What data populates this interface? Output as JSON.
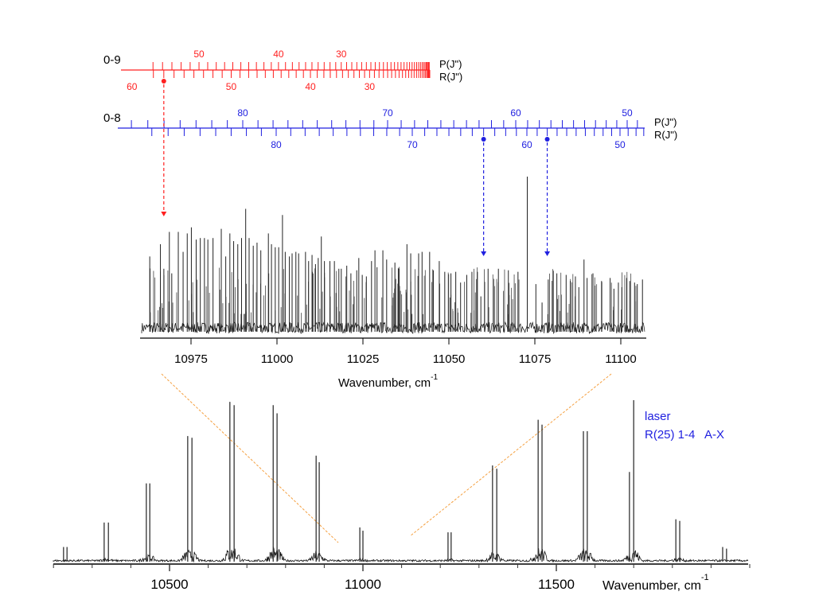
{
  "assignment_scales": [
    {
      "label": "0-9",
      "color": "#ff2020",
      "p_label": "P(J\")",
      "r_label": "R(J\")",
      "p_range": [
        0,
        55
      ],
      "r_range": [
        6,
        58
      ],
      "p_tick_labels": [
        50,
        40,
        30
      ],
      "r_tick_labels": [
        60,
        50,
        40,
        30
      ],
      "marked_R": [
        57
      ]
    },
    {
      "label": "0-8",
      "color": "#2020e0",
      "p_label": "P(J\")",
      "r_label": "R(J\")",
      "p_range": [
        49,
        87
      ],
      "r_range": [
        47,
        88
      ],
      "p_tick_labels": [
        80,
        70,
        60,
        50
      ],
      "r_tick_labels": [
        80,
        70,
        60,
        50
      ],
      "marked_R": [
        64,
        58
      ]
    }
  ],
  "zoom_line_color": "#f5a040",
  "chart_data": [
    {
      "name": "inset",
      "type": "line",
      "title": "",
      "xlabel": "Wavenumber, cm",
      "xlabel_sup": "-1",
      "ylabel": "",
      "xlim": [
        10961,
        11107
      ],
      "ylim": [
        0,
        1
      ],
      "xticks": [
        10975,
        11000,
        11025,
        11050,
        11075,
        11100
      ],
      "grid": false,
      "lines": [
        [
          10963.0,
          0.48
        ],
        [
          10966.1,
          0.56
        ],
        [
          10967.1,
          0.4
        ],
        [
          10968.7,
          0.64
        ],
        [
          10969.4,
          0.37
        ],
        [
          10971.3,
          0.64
        ],
        [
          10972.7,
          0.51
        ],
        [
          10973.9,
          0.63
        ],
        [
          10975.1,
          0.67
        ],
        [
          10976.5,
          0.59
        ],
        [
          10977.7,
          0.6
        ],
        [
          10978.9,
          0.6
        ],
        [
          10979.9,
          0.59
        ],
        [
          10981.4,
          0.6
        ],
        [
          10983.8,
          0.66
        ],
        [
          10985.1,
          0.48
        ],
        [
          10986.3,
          0.63
        ],
        [
          10987.4,
          0.58
        ],
        [
          10988.6,
          0.56
        ],
        [
          10989.7,
          0.6
        ],
        [
          10990.9,
          0.79
        ],
        [
          10991.9,
          0.6
        ],
        [
          10993.1,
          0.55
        ],
        [
          10994.2,
          0.57
        ],
        [
          10995.3,
          0.52
        ],
        [
          10997.5,
          0.63
        ],
        [
          10998.4,
          0.56
        ],
        [
          10999.5,
          0.54
        ],
        [
          11000.5,
          0.54
        ],
        [
          11001.6,
          0.75
        ],
        [
          11002.4,
          0.51
        ],
        [
          11003.6,
          0.48
        ],
        [
          11004.4,
          0.5
        ],
        [
          11005.5,
          0.51
        ],
        [
          11006.3,
          0.5
        ],
        [
          11008.3,
          0.51
        ],
        [
          11009.2,
          0.45
        ],
        [
          11010.2,
          0.49
        ],
        [
          11011.2,
          0.43
        ],
        [
          11012.0,
          0.47
        ],
        [
          11012.9,
          0.61
        ],
        [
          11013.8,
          0.45
        ],
        [
          11015.4,
          0.45
        ],
        [
          11016.7,
          0.45
        ],
        [
          11018.0,
          0.4
        ],
        [
          11018.7,
          0.4
        ],
        [
          11020.3,
          0.42
        ],
        [
          11021.5,
          0.37
        ],
        [
          11023.2,
          0.39
        ],
        [
          11023.8,
          0.47
        ],
        [
          11024.8,
          0.36
        ],
        [
          11026.0,
          0.35
        ],
        [
          11027.5,
          0.45
        ],
        [
          11028.5,
          0.52
        ],
        [
          11029.1,
          0.41
        ],
        [
          11030.8,
          0.52
        ],
        [
          11031.9,
          0.46
        ],
        [
          11034.3,
          0.44
        ],
        [
          11035.4,
          0.4
        ],
        [
          11037.8,
          0.56
        ],
        [
          11038.9,
          0.5
        ],
        [
          11041.2,
          0.5
        ],
        [
          11042.2,
          0.51
        ],
        [
          11044.4,
          0.51
        ],
        [
          11045.5,
          0.39
        ],
        [
          11047.2,
          0.45
        ],
        [
          11048.8,
          0.38
        ],
        [
          11050.6,
          0.37
        ],
        [
          11052.0,
          0.38
        ],
        [
          11053.4,
          0.31
        ],
        [
          11055.2,
          0.36
        ],
        [
          11056.7,
          0.38
        ],
        [
          11058.3,
          0.38
        ],
        [
          11059.3,
          0.22
        ],
        [
          11061.4,
          0.4
        ],
        [
          11064.4,
          0.4
        ],
        [
          11067.3,
          0.39
        ],
        [
          11070.1,
          0.38
        ],
        [
          11072.8,
          1.0
        ],
        [
          11075.3,
          0.3
        ],
        [
          11077.1,
          0.18
        ],
        [
          11078.9,
          0.33
        ],
        [
          11081.4,
          0.37
        ],
        [
          11084.1,
          0.36
        ],
        [
          11085.3,
          0.32
        ],
        [
          11086.8,
          0.35
        ],
        [
          11087.8,
          0.28
        ],
        [
          11089.3,
          0.46
        ],
        [
          11090.2,
          0.34
        ],
        [
          11091.9,
          0.37
        ],
        [
          11092.5,
          0.29
        ],
        [
          11094.4,
          0.32
        ],
        [
          11096.9,
          0.34
        ],
        [
          11098.0,
          0.27
        ],
        [
          11099.3,
          0.31
        ],
        [
          11100.3,
          0.28
        ],
        [
          11101.7,
          0.34
        ],
        [
          11102.6,
          0.32
        ],
        [
          11104.0,
          0.31
        ],
        [
          11104.8,
          0.3
        ],
        [
          11106.3,
          0.33
        ]
      ]
    },
    {
      "name": "overview",
      "type": "line",
      "title": "",
      "xlabel": "Wavenumber, cm",
      "xlabel_sup": "-1",
      "ylabel": "",
      "xlim": [
        10200,
        12000
      ],
      "ylim": [
        0,
        1
      ],
      "xticks": [
        10500,
        11000,
        11500
      ],
      "minor_step": 100,
      "grid": false,
      "legend": {
        "line1": "laser",
        "line2": "R(25) 1-4   A-X",
        "position": "top-right",
        "color": "#2020e0"
      },
      "lines": [
        [
          10226,
          0.09
        ],
        [
          10235,
          0.09
        ],
        [
          10331,
          0.24
        ],
        [
          10342,
          0.24
        ],
        [
          10440,
          0.48
        ],
        [
          10449,
          0.48
        ],
        [
          10547,
          0.77
        ],
        [
          10558,
          0.76
        ],
        [
          10656,
          0.98
        ],
        [
          10667,
          0.96
        ],
        [
          10768,
          0.96
        ],
        [
          10778,
          0.91
        ],
        [
          10879,
          0.65
        ],
        [
          10887,
          0.61
        ],
        [
          10992,
          0.21
        ],
        [
          11000,
          0.19
        ],
        [
          11220,
          0.18
        ],
        [
          11228,
          0.18
        ],
        [
          11335,
          0.59
        ],
        [
          11346,
          0.57
        ],
        [
          11453,
          0.87
        ],
        [
          11463,
          0.84
        ],
        [
          11570,
          0.8
        ],
        [
          11580,
          0.8
        ],
        [
          11689,
          0.55
        ],
        [
          11700,
          0.99
        ],
        [
          11809,
          0.26
        ],
        [
          11819,
          0.25
        ],
        [
          11930,
          0.09
        ],
        [
          11940,
          0.08
        ]
      ]
    }
  ]
}
